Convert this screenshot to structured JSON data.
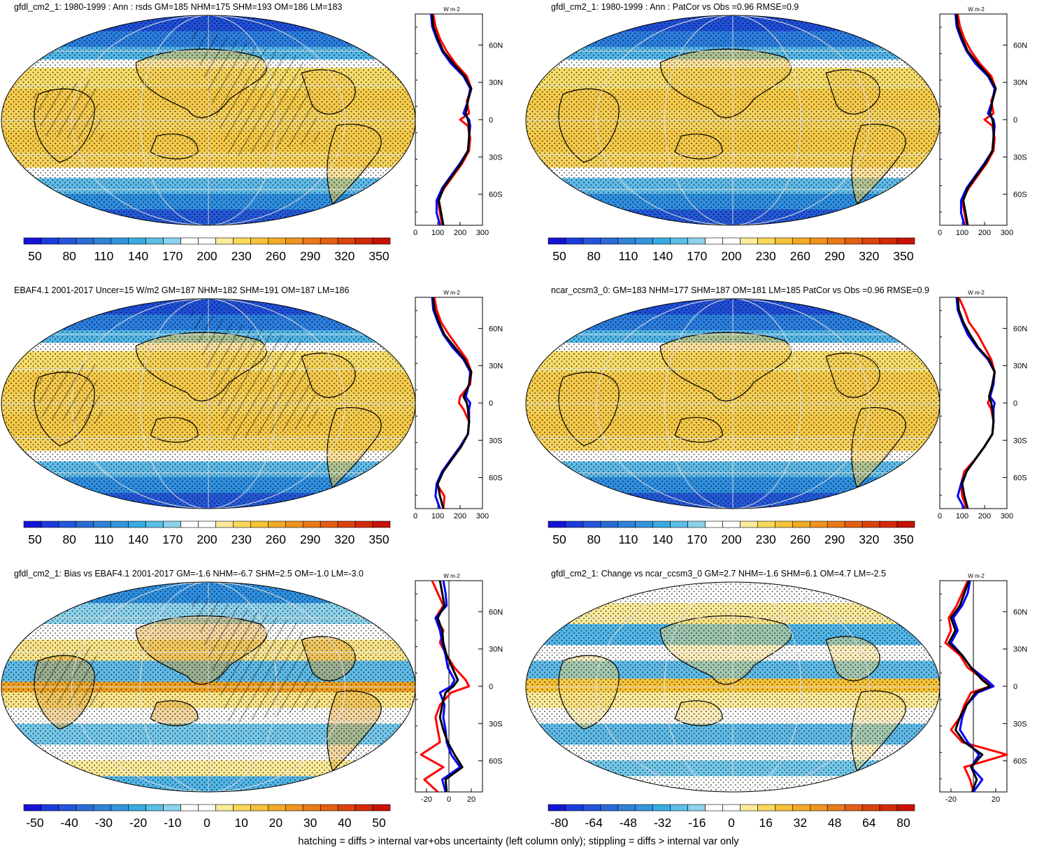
{
  "footer": "hatching = diffs > internal var+obs uncertainty (left column only); stippling = diffs > internal var only",
  "colors": {
    "profile_model": "#ff0000",
    "profile_obs": "#0000ff",
    "profile_other": "#000000",
    "ocean_low": "#1e88e5",
    "land_outline": "#000000"
  },
  "chart_data": [
    {
      "type": "heatmap",
      "title": "gfdl_cm2_1: 1980-1999 : Ann : rsds GM=185 NHM=175 SHM=193 OM=186 LM=183",
      "kind": "abs",
      "hatching": true,
      "colorbar": {
        "ticks": [
          "50",
          "80",
          "110",
          "140",
          "170",
          "200",
          "230",
          "260",
          "290",
          "320",
          "350"
        ]
      },
      "profile": {
        "unit": "W m-2",
        "xlim": [
          0,
          300
        ],
        "xticks": [
          "0",
          "100",
          "200",
          "300"
        ],
        "yticks": [
          "60N",
          "30N",
          "0",
          "30S",
          "60S"
        ],
        "series": [
          {
            "color": "red",
            "lat": [
              85,
              75,
              65,
              55,
              45,
              35,
              25,
              15,
              5,
              0,
              -5,
              -15,
              -25,
              -35,
              -45,
              -55,
              -65,
              -75,
              -85
            ],
            "values": [
              80,
              90,
              110,
              140,
              180,
              230,
              250,
              230,
              240,
              200,
              235,
              245,
              240,
              210,
              170,
              130,
              100,
              110,
              120
            ]
          },
          {
            "color": "blue",
            "lat": [
              85,
              75,
              65,
              55,
              45,
              35,
              25,
              15,
              5,
              0,
              -5,
              -15,
              -25,
              -35,
              -45,
              -55,
              -65,
              -75,
              -85
            ],
            "values": [
              70,
              75,
              95,
              120,
              160,
              215,
              245,
              235,
              215,
              240,
              245,
              240,
              235,
              200,
              160,
              120,
              95,
              95,
              110
            ]
          },
          {
            "color": "black",
            "lat": [
              85,
              75,
              65,
              55,
              45,
              35,
              25,
              15,
              5,
              0,
              -5,
              -15,
              -25,
              -35,
              -45,
              -55,
              -65,
              -75,
              -85
            ],
            "values": [
              75,
              80,
              100,
              125,
              170,
              220,
              250,
              235,
              225,
              235,
              240,
              240,
              235,
              205,
              165,
              125,
              105,
              115,
              125
            ]
          }
        ]
      }
    },
    {
      "type": "heatmap",
      "title": "gfdl_cm2_1: 1980-1999 : Ann : PatCor vs Obs =0.96 RMSE=0.9",
      "kind": "abs",
      "hatching": false,
      "colorbar": {
        "ticks": [
          "50",
          "80",
          "110",
          "140",
          "170",
          "200",
          "230",
          "260",
          "290",
          "320",
          "350"
        ]
      },
      "profile": {
        "unit": "W m-2",
        "xlim": [
          0,
          300
        ],
        "xticks": [
          "0",
          "100",
          "200",
          "300"
        ],
        "yticks": [
          "60N",
          "30N",
          "0",
          "30S",
          "60S"
        ],
        "series": [
          {
            "color": "red",
            "lat": [
              85,
              75,
              65,
              55,
              45,
              35,
              25,
              15,
              5,
              0,
              -5,
              -15,
              -25,
              -35,
              -45,
              -55,
              -65,
              -75,
              -85
            ],
            "values": [
              80,
              90,
              110,
              140,
              180,
              230,
              250,
              230,
              240,
              200,
              235,
              245,
              240,
              210,
              170,
              130,
              100,
              110,
              120
            ]
          },
          {
            "color": "blue",
            "lat": [
              85,
              75,
              65,
              55,
              45,
              35,
              25,
              15,
              5,
              0,
              -5,
              -15,
              -25,
              -35,
              -45,
              -55,
              -65,
              -75,
              -85
            ],
            "values": [
              70,
              75,
              95,
              120,
              160,
              215,
              245,
              235,
              215,
              240,
              245,
              240,
              235,
              200,
              160,
              120,
              95,
              95,
              110
            ]
          },
          {
            "color": "black",
            "lat": [
              85,
              75,
              65,
              55,
              45,
              35,
              25,
              15,
              5,
              0,
              -5,
              -15,
              -25,
              -35,
              -45,
              -55,
              -65,
              -75,
              -85
            ],
            "values": [
              75,
              80,
              100,
              125,
              170,
              220,
              250,
              235,
              225,
              235,
              240,
              240,
              235,
              205,
              165,
              125,
              105,
              115,
              125
            ]
          }
        ]
      }
    },
    {
      "type": "heatmap",
      "title": "EBAF4.1 2001-2017 Uncer=15 W/m2 GM=187 NHM=182 SHM=191 OM=187 LM=186",
      "kind": "abs",
      "hatching": true,
      "colorbar": {
        "ticks": [
          "50",
          "80",
          "110",
          "140",
          "170",
          "200",
          "230",
          "260",
          "290",
          "320",
          "350"
        ]
      },
      "profile": {
        "unit": "W m-2",
        "xlim": [
          0,
          300
        ],
        "xticks": [
          "0",
          "100",
          "200",
          "300"
        ],
        "yticks": [
          "60N",
          "30N",
          "0",
          "30S",
          "60S"
        ],
        "series": [
          {
            "color": "red",
            "lat": [
              85,
              75,
              65,
              55,
              45,
              35,
              25,
              15,
              5,
              0,
              -5,
              -15,
              -25,
              -35,
              -45,
              -55,
              -65,
              -75,
              -85
            ],
            "values": [
              85,
              95,
              115,
              150,
              190,
              230,
              250,
              245,
              200,
              195,
              215,
              240,
              235,
              205,
              165,
              125,
              95,
              130,
              125
            ]
          },
          {
            "color": "blue",
            "lat": [
              85,
              75,
              65,
              55,
              45,
              35,
              25,
              15,
              5,
              0,
              -5,
              -15,
              -25,
              -35,
              -45,
              -55,
              -65,
              -75,
              -85
            ],
            "values": [
              75,
              80,
              100,
              125,
              165,
              215,
              245,
              240,
              225,
              245,
              240,
              240,
              235,
              200,
              160,
              120,
              95,
              90,
              110
            ]
          },
          {
            "color": "black",
            "lat": [
              85,
              75,
              65,
              55,
              45,
              35,
              25,
              15,
              5,
              0,
              -5,
              -15,
              -25,
              -35,
              -45,
              -55,
              -65,
              -75,
              -85
            ],
            "values": [
              80,
              85,
              105,
              130,
              175,
              220,
              250,
              240,
              215,
              230,
              235,
              240,
              235,
              205,
              165,
              125,
              100,
              110,
              125
            ]
          }
        ]
      }
    },
    {
      "type": "heatmap",
      "title": "ncar_ccsm3_0: GM=183 NHM=177 SHM=187 OM=181 LM=185 PatCor vs Obs =0.96 RMSE=0.9",
      "kind": "abs",
      "hatching": false,
      "colorbar": {
        "ticks": [
          "50",
          "80",
          "110",
          "140",
          "170",
          "200",
          "230",
          "260",
          "290",
          "320",
          "350"
        ]
      },
      "profile": {
        "unit": "W m-2",
        "xlim": [
          0,
          300
        ],
        "xticks": [
          "0",
          "100",
          "200",
          "300"
        ],
        "yticks": [
          "60N",
          "30N",
          "0",
          "30S",
          "60S"
        ],
        "series": [
          {
            "color": "red",
            "lat": [
              85,
              75,
              65,
              55,
              45,
              35,
              25,
              15,
              5,
              0,
              -5,
              -15,
              -25,
              -35,
              -45,
              -55,
              -65,
              -75,
              -85
            ],
            "values": [
              85,
              110,
              130,
              170,
              200,
              230,
              245,
              235,
              225,
              215,
              230,
              240,
              235,
              200,
              160,
              110,
              95,
              100,
              120
            ]
          },
          {
            "color": "blue",
            "lat": [
              85,
              75,
              65,
              55,
              45,
              35,
              25,
              15,
              5,
              0,
              -5,
              -15,
              -25,
              -35,
              -45,
              -55,
              -65,
              -75,
              -85
            ],
            "values": [
              75,
              80,
              100,
              125,
              165,
              215,
              245,
              240,
              225,
              245,
              240,
              240,
              235,
              200,
              160,
              120,
              95,
              80,
              110
            ]
          },
          {
            "color": "black",
            "lat": [
              85,
              75,
              65,
              55,
              45,
              35,
              25,
              15,
              5,
              0,
              -5,
              -15,
              -25,
              -35,
              -45,
              -55,
              -65,
              -75,
              -85
            ],
            "values": [
              80,
              85,
              105,
              135,
              170,
              220,
              245,
              235,
              220,
              230,
              235,
              240,
              235,
              200,
              160,
              120,
              100,
              110,
              125
            ]
          }
        ]
      }
    },
    {
      "type": "heatmap",
      "title": "gfdl_cm2_1: Bias vs EBAF4.1 2001-2017 GM=-1.6 NHM=-6.7 SHM=2.5 OM=-1.0 LM=-3.0",
      "kind": "bias",
      "hatching": true,
      "colorbar": {
        "ticks": [
          "-50",
          "-40",
          "-30",
          "-20",
          "-10",
          "0",
          "10",
          "20",
          "30",
          "40",
          "50"
        ]
      },
      "profile": {
        "unit": "W m-2",
        "xlim": [
          -30,
          30
        ],
        "xticks": [
          "-20",
          "0",
          "20"
        ],
        "yticks": [
          "60N",
          "30N",
          "0",
          "30S",
          "60S"
        ],
        "series": [
          {
            "color": "red",
            "lat": [
              85,
              75,
              65,
              55,
              45,
              35,
              25,
              15,
              5,
              0,
              -5,
              -15,
              -25,
              -35,
              -45,
              -55,
              -65,
              -75,
              -85
            ],
            "values": [
              -15,
              -10,
              -5,
              -12,
              -5,
              -8,
              -2,
              5,
              15,
              18,
              2,
              -8,
              -12,
              -10,
              -8,
              -25,
              -5,
              -22,
              -10
            ]
          },
          {
            "color": "blue",
            "lat": [
              85,
              75,
              65,
              55,
              45,
              35,
              25,
              15,
              5,
              0,
              -5,
              -15,
              -25,
              -35,
              -45,
              -55,
              -65,
              -75,
              -85
            ],
            "values": [
              -5,
              -3,
              -2,
              -12,
              -8,
              -6,
              -3,
              -1,
              5,
              2,
              -8,
              -4,
              -5,
              -3,
              -2,
              2,
              10,
              -6,
              -3
            ]
          },
          {
            "color": "black",
            "lat": [
              85,
              75,
              65,
              55,
              45,
              35,
              25,
              15,
              5,
              0,
              -5,
              -15,
              -25,
              -35,
              -45,
              -55,
              -65,
              -75,
              -85
            ],
            "values": [
              -8,
              -6,
              -4,
              -10,
              -6,
              -5,
              -2,
              3,
              8,
              4,
              -3,
              -6,
              -8,
              -5,
              -1,
              5,
              12,
              -3,
              -2
            ]
          }
        ]
      }
    },
    {
      "type": "heatmap",
      "title": "gfdl_cm2_1: Change vs ncar_ccsm3_0 GM=2.7 NHM=-1.6 SHM=6.1 OM=4.7 LM=-2.5",
      "kind": "change",
      "hatching": false,
      "colorbar": {
        "ticks": [
          "-80",
          "-64",
          "-48",
          "-32",
          "-16",
          "0",
          "16",
          "32",
          "48",
          "64",
          "80"
        ]
      },
      "profile": {
        "unit": "W m-2",
        "xlim": [
          -30,
          30
        ],
        "xticks": [
          "-20",
          "20"
        ],
        "yticks": [
          "60N",
          "30N",
          "0",
          "30S",
          "60S"
        ],
        "series": [
          {
            "color": "red",
            "lat": [
              85,
              75,
              65,
              55,
              45,
              35,
              25,
              15,
              5,
              0,
              -5,
              -15,
              -25,
              -35,
              -45,
              -55,
              -65,
              -75,
              -85
            ],
            "values": [
              -5,
              -10,
              -15,
              -22,
              -20,
              -25,
              -12,
              -5,
              10,
              15,
              -2,
              -8,
              -12,
              -20,
              -10,
              30,
              -8,
              -3,
              0
            ]
          },
          {
            "color": "blue",
            "lat": [
              85,
              75,
              65,
              55,
              45,
              35,
              25,
              15,
              5,
              0,
              -5,
              -15,
              -25,
              -35,
              -45,
              -55,
              -65,
              -75,
              -85
            ],
            "values": [
              -3,
              -5,
              -10,
              -18,
              -14,
              -20,
              -10,
              -2,
              12,
              18,
              4,
              -6,
              -10,
              -12,
              -5,
              5,
              -2,
              8,
              0
            ]
          },
          {
            "color": "black",
            "lat": [
              85,
              75,
              65,
              55,
              45,
              35,
              25,
              15,
              5,
              0,
              -5,
              -15,
              -25,
              -35,
              -45,
              -55,
              -65,
              -75,
              -85
            ],
            "values": [
              -4,
              -8,
              -12,
              -20,
              -16,
              -22,
              -10,
              -2,
              8,
              15,
              2,
              -6,
              -12,
              -16,
              -8,
              8,
              -2,
              3,
              -1
            ]
          }
        ]
      }
    }
  ]
}
